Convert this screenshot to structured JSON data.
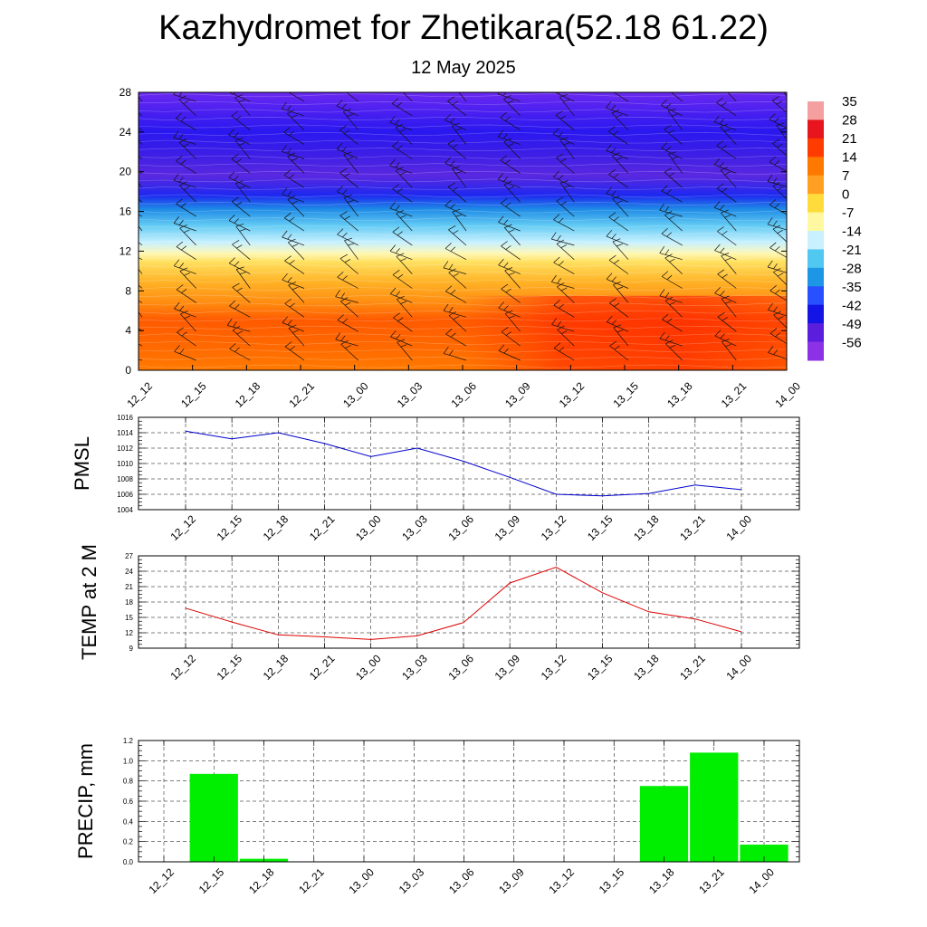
{
  "header": {
    "title": "Kazhydromet for Zhetikara(52.18 61.22)",
    "date": "12 May 2025"
  },
  "time_labels": [
    "12_12",
    "12_15",
    "12_18",
    "12_21",
    "13_00",
    "13_03",
    "13_06",
    "13_09",
    "13_12",
    "13_15",
    "13_18",
    "13_21",
    "14_00"
  ],
  "chart_data": [
    {
      "type": "heatmap",
      "x": [
        "12_12",
        "12_15",
        "12_18",
        "12_21",
        "13_00",
        "13_03",
        "13_06",
        "13_09",
        "13_12",
        "13_15",
        "13_18",
        "13_21",
        "14_00"
      ],
      "y_ticks": [
        0,
        4,
        8,
        12,
        16,
        20,
        24,
        28
      ],
      "ylim": [
        0,
        28
      ],
      "colorbar": {
        "labels": [
          "35",
          "28",
          "21",
          "14",
          "7",
          "0",
          "-7",
          "-14",
          "-21",
          "-28",
          "-35",
          "-42",
          "-49",
          "-56"
        ],
        "colors": [
          "#f4a0a0",
          "#e8141e",
          "#ff3c00",
          "#ff7800",
          "#ffa020",
          "#ffdc3c",
          "#fff8a0",
          "#c8f0ff",
          "#50c8f0",
          "#1e96e6",
          "#2850ff",
          "#1414e6",
          "#5a1edc",
          "#8c32e6"
        ]
      },
      "bands": [
        {
          "y": [
            0,
            7.5
          ],
          "value": "warm-surface"
        },
        {
          "y": [
            7.5,
            12.3
          ],
          "value": "yellow"
        },
        {
          "y": [
            12.3,
            18.2
          ],
          "value": "cyan-blue"
        },
        {
          "y": [
            18.2,
            28
          ],
          "value": "violet-blue"
        }
      ],
      "wind_barbs": true
    },
    {
      "type": "line",
      "ylabel": "PMSL",
      "x": [
        "12_12",
        "12_15",
        "12_18",
        "12_21",
        "13_00",
        "13_03",
        "13_06",
        "13_09",
        "13_12",
        "13_15",
        "13_18",
        "13_21",
        "14_00"
      ],
      "y_ticks": [
        "1004",
        "1006",
        "1008",
        "1010",
        "1012",
        "1014",
        "1016"
      ],
      "ylim": [
        1004,
        1016
      ],
      "grid": true,
      "series": [
        {
          "color": "#0000cc",
          "values": [
            1014.2,
            1013.2,
            1014.0,
            1012.6,
            1010.9,
            1012.0,
            1010.3,
            1008.2,
            1006.0,
            1005.8,
            1006.1,
            1007.2,
            1006.6
          ]
        }
      ]
    },
    {
      "type": "line",
      "ylabel": "TEMP at 2 M",
      "x": [
        "12_12",
        "12_15",
        "12_18",
        "12_21",
        "13_00",
        "13_03",
        "13_06",
        "13_09",
        "13_12",
        "13_15",
        "13_18",
        "13_21",
        "14_00"
      ],
      "y_ticks": [
        "9",
        "12",
        "15",
        "18",
        "21",
        "24",
        "27"
      ],
      "ylim": [
        9,
        27
      ],
      "grid": true,
      "series": [
        {
          "color": "#dd0000",
          "values": [
            16.8,
            14.1,
            11.6,
            11.2,
            10.7,
            11.4,
            14.0,
            21.7,
            24.8,
            19.8,
            16.1,
            14.7,
            12.2
          ]
        }
      ]
    },
    {
      "type": "bar",
      "ylabel": "PRECIP, mm",
      "categories": [
        "12_12",
        "12_15",
        "12_18",
        "12_21",
        "13_00",
        "13_03",
        "13_06",
        "13_09",
        "13_12",
        "13_15",
        "13_18",
        "13_21",
        "14_00"
      ],
      "y_ticks": [
        "0.0",
        "0.2",
        "0.4",
        "0.6",
        "0.8",
        "1.0",
        "1.2"
      ],
      "ylim": [
        0,
        1.2
      ],
      "grid": true,
      "color": "#00ee00",
      "values": [
        0,
        0.87,
        0.03,
        0,
        0,
        0,
        0,
        0,
        0,
        0,
        0.75,
        1.08,
        0.17
      ]
    }
  ]
}
